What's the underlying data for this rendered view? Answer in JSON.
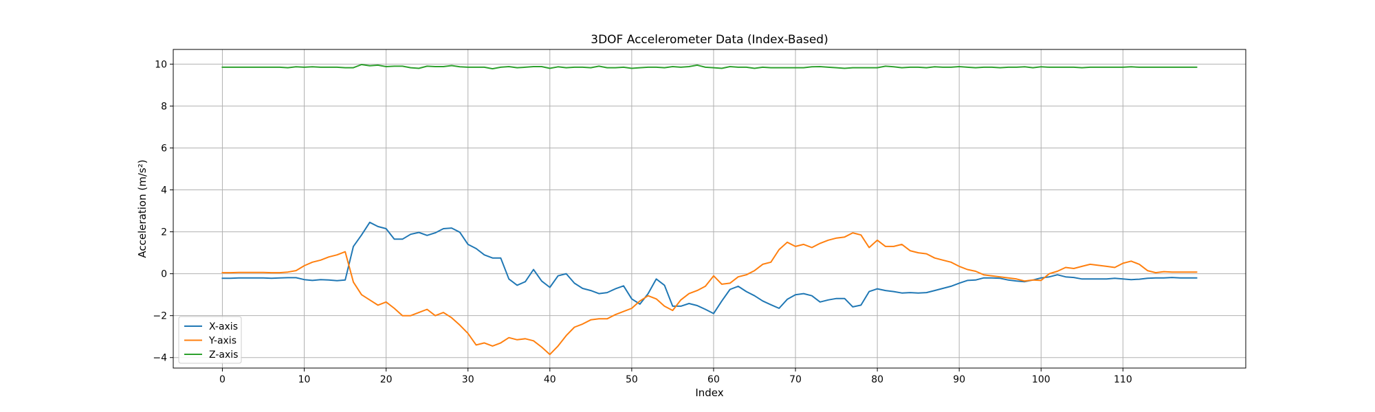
{
  "chart_data": {
    "type": "line",
    "title": "3DOF Accelerometer Data (Index-Based)",
    "xlabel": "Index",
    "ylabel": "Acceleration (m/s²)",
    "xlim": [
      -6,
      125
    ],
    "ylim": [
      -4.5,
      10.7
    ],
    "xticks": [
      0,
      10,
      20,
      30,
      40,
      50,
      60,
      70,
      80,
      90,
      100,
      110
    ],
    "yticks": [
      -4,
      -2,
      0,
      2,
      4,
      6,
      8,
      10
    ],
    "grid": true,
    "legend_position": "lower-left",
    "x": [
      0,
      1,
      2,
      3,
      4,
      5,
      6,
      7,
      8,
      9,
      10,
      11,
      12,
      13,
      14,
      15,
      16,
      17,
      18,
      19,
      20,
      21,
      22,
      23,
      24,
      25,
      26,
      27,
      28,
      29,
      30,
      31,
      32,
      33,
      34,
      35,
      36,
      37,
      38,
      39,
      40,
      41,
      42,
      43,
      44,
      45,
      46,
      47,
      48,
      49,
      50,
      51,
      52,
      53,
      54,
      55,
      56,
      57,
      58,
      59,
      60,
      61,
      62,
      63,
      64,
      65,
      66,
      67,
      68,
      69,
      70,
      71,
      72,
      73,
      74,
      75,
      76,
      77,
      78,
      79,
      80,
      81,
      82,
      83,
      84,
      85,
      86,
      87,
      88,
      89,
      90,
      91,
      92,
      93,
      94,
      95,
      96,
      97,
      98,
      99,
      100,
      101,
      102,
      103,
      104,
      105,
      106,
      107,
      108,
      109,
      110,
      111,
      112,
      113,
      114,
      115,
      116,
      117,
      118,
      119
    ],
    "series": [
      {
        "name": "X-axis",
        "color": "#1f77b4",
        "values": [
          -0.22,
          -0.22,
          -0.2,
          -0.2,
          -0.2,
          -0.2,
          -0.22,
          -0.2,
          -0.19,
          -0.19,
          -0.28,
          -0.32,
          -0.28,
          -0.3,
          -0.33,
          -0.3,
          1.3,
          1.85,
          2.45,
          2.25,
          2.15,
          1.65,
          1.65,
          1.88,
          1.97,
          1.83,
          1.95,
          2.15,
          2.18,
          1.98,
          1.4,
          1.2,
          0.9,
          0.75,
          0.75,
          -0.25,
          -0.55,
          -0.38,
          0.2,
          -0.35,
          -0.65,
          -0.1,
          0.0,
          -0.45,
          -0.7,
          -0.8,
          -0.95,
          -0.9,
          -0.72,
          -0.58,
          -1.2,
          -1.45,
          -0.95,
          -0.25,
          -0.55,
          -1.55,
          -1.55,
          -1.42,
          -1.52,
          -1.7,
          -1.9,
          -1.3,
          -0.75,
          -0.6,
          -0.85,
          -1.05,
          -1.3,
          -1.48,
          -1.65,
          -1.22,
          -1.0,
          -0.95,
          -1.05,
          -1.35,
          -1.25,
          -1.18,
          -1.18,
          -1.58,
          -1.5,
          -0.85,
          -0.72,
          -0.8,
          -0.85,
          -0.92,
          -0.9,
          -0.92,
          -0.9,
          -0.8,
          -0.7,
          -0.6,
          -0.45,
          -0.32,
          -0.3,
          -0.2,
          -0.2,
          -0.22,
          -0.3,
          -0.35,
          -0.38,
          -0.3,
          -0.2,
          -0.15,
          -0.05,
          -0.15,
          -0.18,
          -0.25,
          -0.25,
          -0.25,
          -0.25,
          -0.22,
          -0.25,
          -0.28,
          -0.26,
          -0.22,
          -0.2,
          -0.2,
          -0.18,
          -0.2,
          -0.2,
          -0.2
        ]
      },
      {
        "name": "Y-axis",
        "color": "#ff7f0e",
        "values": [
          0.05,
          0.05,
          0.06,
          0.06,
          0.06,
          0.06,
          0.05,
          0.05,
          0.08,
          0.15,
          0.38,
          0.55,
          0.65,
          0.8,
          0.9,
          1.05,
          -0.4,
          -1.0,
          -1.25,
          -1.5,
          -1.35,
          -1.65,
          -2.0,
          -2.0,
          -1.85,
          -1.7,
          -2.0,
          -1.85,
          -2.1,
          -2.45,
          -2.85,
          -3.4,
          -3.3,
          -3.45,
          -3.3,
          -3.05,
          -3.15,
          -3.1,
          -3.2,
          -3.5,
          -3.85,
          -3.45,
          -2.95,
          -2.55,
          -2.4,
          -2.2,
          -2.15,
          -2.15,
          -1.95,
          -1.8,
          -1.65,
          -1.3,
          -1.05,
          -1.2,
          -1.55,
          -1.75,
          -1.25,
          -0.95,
          -0.8,
          -0.6,
          -0.1,
          -0.5,
          -0.45,
          -0.15,
          -0.05,
          0.15,
          0.45,
          0.55,
          1.15,
          1.5,
          1.3,
          1.4,
          1.25,
          1.45,
          1.6,
          1.7,
          1.75,
          1.95,
          1.85,
          1.25,
          1.6,
          1.3,
          1.3,
          1.4,
          1.1,
          1.0,
          0.95,
          0.75,
          0.65,
          0.55,
          0.35,
          0.2,
          0.12,
          -0.05,
          -0.1,
          -0.15,
          -0.2,
          -0.25,
          -0.35,
          -0.3,
          -0.32,
          0.0,
          0.12,
          0.3,
          0.25,
          0.35,
          0.45,
          0.4,
          0.35,
          0.3,
          0.5,
          0.6,
          0.45,
          0.15,
          0.05,
          0.1,
          0.08,
          0.08,
          0.08,
          0.08
        ]
      },
      {
        "name": "Z-axis",
        "color": "#2ca02c",
        "values": [
          9.85,
          9.85,
          9.85,
          9.85,
          9.85,
          9.85,
          9.85,
          9.85,
          9.83,
          9.87,
          9.85,
          9.87,
          9.85,
          9.85,
          9.85,
          9.83,
          9.83,
          9.98,
          9.92,
          9.95,
          9.88,
          9.9,
          9.9,
          9.83,
          9.8,
          9.9,
          9.88,
          9.88,
          9.93,
          9.87,
          9.85,
          9.85,
          9.85,
          9.78,
          9.85,
          9.88,
          9.83,
          9.85,
          9.88,
          9.88,
          9.8,
          9.87,
          9.83,
          9.85,
          9.85,
          9.83,
          9.9,
          9.83,
          9.83,
          9.85,
          9.8,
          9.83,
          9.85,
          9.85,
          9.83,
          9.88,
          9.85,
          9.88,
          9.95,
          9.85,
          9.83,
          9.8,
          9.88,
          9.85,
          9.85,
          9.8,
          9.85,
          9.83,
          9.83,
          9.83,
          9.83,
          9.83,
          9.87,
          9.88,
          9.85,
          9.83,
          9.8,
          9.83,
          9.83,
          9.83,
          9.83,
          9.9,
          9.87,
          9.83,
          9.85,
          9.85,
          9.83,
          9.87,
          9.85,
          9.85,
          9.88,
          9.85,
          9.83,
          9.85,
          9.85,
          9.83,
          9.85,
          9.85,
          9.87,
          9.83,
          9.87,
          9.85,
          9.85,
          9.85,
          9.85,
          9.83,
          9.85,
          9.85,
          9.85,
          9.85,
          9.85,
          9.87,
          9.85,
          9.85,
          9.85,
          9.85,
          9.85,
          9.85,
          9.85,
          9.85
        ]
      }
    ]
  }
}
